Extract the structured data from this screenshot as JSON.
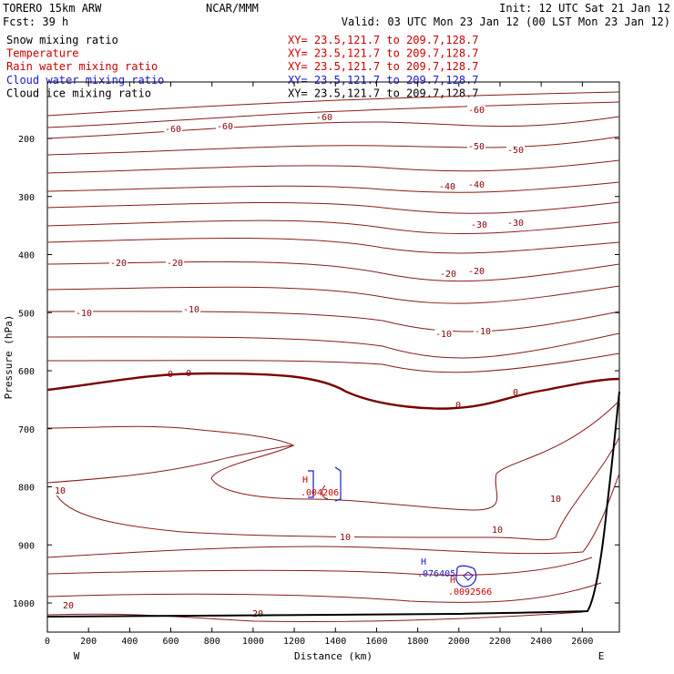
{
  "header": {
    "model": "TORERO  15km ARW",
    "center": "NCAR/MMM",
    "init": "Init: 12 UTC Sat 21 Jan 12",
    "fcst": "Fcst:   39 h",
    "valid": "Valid: 03 UTC Mon 23 Jan 12 (00 LST Mon 23 Jan 12)"
  },
  "fields": [
    {
      "name": "Snow mixing ratio",
      "color": "#000000",
      "xy": "XY=  23.5,121.7 to 209.7,128.7",
      "xy_color": "#cc0000"
    },
    {
      "name": "Temperature",
      "color": "#cc0000",
      "xy": "XY=  23.5,121.7 to 209.7,128.7",
      "xy_color": "#cc0000"
    },
    {
      "name": "Rain water mixing ratio",
      "color": "#cc0000",
      "xy": "XY=  23.5,121.7 to 209.7,128.7",
      "xy_color": "#cc0000"
    },
    {
      "name": "Cloud water mixing ratio",
      "color": "#1a1acc",
      "xy": "XY=  23.5,121.7 to 209.7,128.7",
      "xy_color": "#1a1acc"
    },
    {
      "name": "Cloud ice mixing ratio",
      "color": "#000000",
      "xy": "XY=  23.5,121.7 to 209.7,128.7",
      "xy_color": "#000000"
    }
  ],
  "chart_data": {
    "type": "contour",
    "xlabel": "Distance (km)",
    "ylabel": "Pressure (hPa)",
    "xlim": [
      0,
      2780
    ],
    "ylim": [
      1050,
      100
    ],
    "xticks": [
      0,
      200,
      400,
      600,
      800,
      1000,
      1200,
      1400,
      1600,
      1800,
      2000,
      2200,
      2400,
      2600
    ],
    "yticks": [
      200,
      300,
      400,
      500,
      600,
      700,
      800,
      900,
      1000
    ],
    "x_end_labels": {
      "left": "W",
      "right": "E"
    },
    "temperature_contours": [
      {
        "level": -60,
        "labels": [
          "-60",
          "-60",
          "-60",
          "-60"
        ]
      },
      {
        "level": -50,
        "labels": [
          "-50",
          "-50"
        ]
      },
      {
        "level": -40,
        "labels": [
          "-40",
          "-40"
        ]
      },
      {
        "level": -30,
        "labels": [
          "-30",
          "-30"
        ]
      },
      {
        "level": -20,
        "labels": [
          "-20",
          "-20",
          "-20",
          "-20"
        ]
      },
      {
        "level": -10,
        "labels": [
          "-10",
          "-10",
          "-10",
          "-10"
        ]
      },
      {
        "level": 0,
        "labels": [
          "0",
          "0",
          "0",
          "0"
        ]
      },
      {
        "level": 10,
        "labels": [
          "10",
          "10",
          "10",
          "10"
        ]
      },
      {
        "level": 20,
        "labels": [
          "20",
          "20"
        ]
      }
    ],
    "extrema": [
      {
        "type": "H",
        "x": 1280,
        "p": 790,
        "value": ".004206",
        "color": "#cc0000",
        "field": "Rain water mixing ratio"
      },
      {
        "type": "H",
        "x": 1850,
        "p": 945,
        "value": ".076405",
        "color": "#1a1acc",
        "field": "Cloud water mixing ratio"
      },
      {
        "type": "H",
        "x": 2000,
        "p": 965,
        "value": ".0092566",
        "color": "#cc0000",
        "field": "Rain water mixing ratio"
      }
    ],
    "terrain": {
      "color": "#000000"
    }
  }
}
